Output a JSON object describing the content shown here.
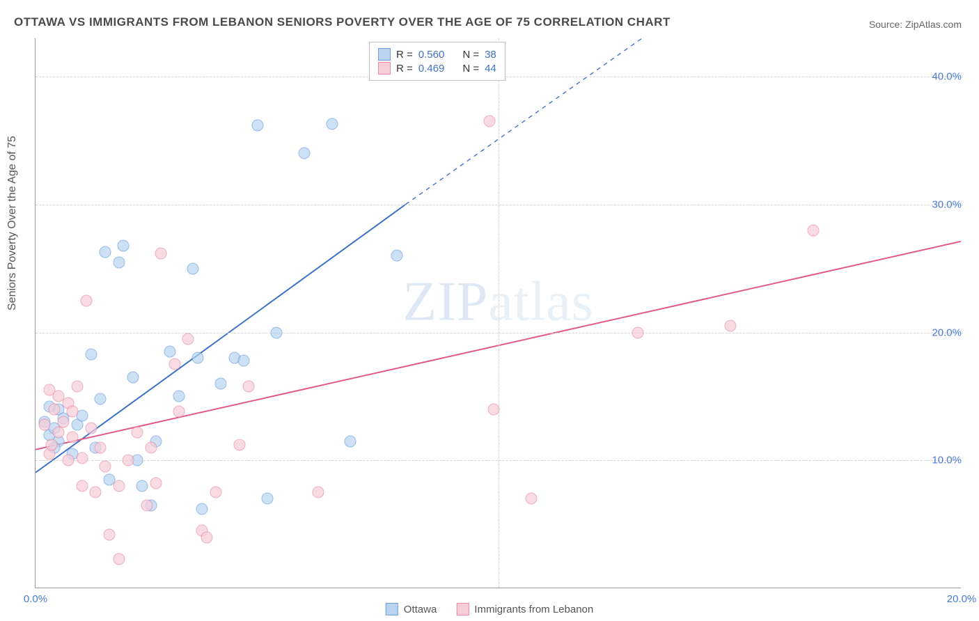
{
  "title": "OTTAWA VS IMMIGRANTS FROM LEBANON SENIORS POVERTY OVER THE AGE OF 75 CORRELATION CHART",
  "source": "Source: ZipAtlas.com",
  "watermark_bold": "ZIP",
  "watermark_thin": "atlas",
  "chart": {
    "type": "scatter",
    "yaxis_title": "Seniors Poverty Over the Age of 75",
    "xlim": [
      0.0,
      20.0
    ],
    "ylim": [
      0.0,
      43.0
    ],
    "xtick_positions": [
      0.0,
      20.0
    ],
    "xtick_labels": [
      "0.0%",
      "20.0%"
    ],
    "ytick_positions": [
      10.0,
      20.0,
      30.0,
      40.0
    ],
    "ytick_labels": [
      "10.0%",
      "20.0%",
      "30.0%",
      "40.0%"
    ],
    "grid_color": "#d5d5d5",
    "axis_color": "#999999",
    "background_color": "#ffffff",
    "tick_label_color": "#4a7bd4",
    "marker_radius": 8.5,
    "marker_opacity": 0.7,
    "series": [
      {
        "name": "Ottawa",
        "fill_color": "#b9d3f0",
        "stroke_color": "#6a9fe0",
        "R": "0.560",
        "N": "38",
        "trendline": {
          "x1": 0.0,
          "y1": 9.0,
          "x2": 8.0,
          "y2": 30.0,
          "dashed_to_x": 13.5,
          "dashed_to_y": 44.0,
          "color": "#3e72c8",
          "width": 2.0
        },
        "points": [
          [
            0.2,
            13.0
          ],
          [
            0.3,
            12.0
          ],
          [
            0.4,
            12.5
          ],
          [
            0.5,
            11.5
          ],
          [
            0.5,
            14.0
          ],
          [
            0.8,
            10.5
          ],
          [
            1.2,
            18.3
          ],
          [
            1.3,
            11.0
          ],
          [
            1.5,
            26.3
          ],
          [
            1.6,
            8.5
          ],
          [
            1.8,
            25.5
          ],
          [
            1.9,
            26.8
          ],
          [
            2.2,
            10.0
          ],
          [
            2.3,
            8.0
          ],
          [
            2.5,
            6.5
          ],
          [
            2.6,
            11.5
          ],
          [
            2.9,
            18.5
          ],
          [
            3.1,
            15.0
          ],
          [
            3.4,
            25.0
          ],
          [
            3.5,
            18.0
          ],
          [
            3.6,
            6.2
          ],
          [
            4.0,
            16.0
          ],
          [
            4.3,
            18.0
          ],
          [
            4.8,
            36.2
          ],
          [
            5.0,
            7.0
          ],
          [
            5.2,
            20.0
          ],
          [
            5.8,
            34.0
          ],
          [
            6.4,
            36.3
          ],
          [
            6.8,
            11.5
          ],
          [
            7.8,
            26.0
          ],
          [
            0.3,
            14.2
          ],
          [
            0.6,
            13.3
          ],
          [
            0.9,
            12.8
          ],
          [
            1.0,
            13.5
          ],
          [
            1.4,
            14.8
          ],
          [
            2.1,
            16.5
          ],
          [
            4.5,
            17.8
          ],
          [
            0.4,
            11.0
          ]
        ]
      },
      {
        "name": "Immigrants from Lebanon",
        "fill_color": "#f7cdd8",
        "stroke_color": "#e88ba8",
        "R": "0.469",
        "N": "44",
        "trendline": {
          "x1": 0.0,
          "y1": 10.8,
          "x2": 20.0,
          "y2": 27.1,
          "color": "#e05a88",
          "width": 2.0
        },
        "points": [
          [
            0.2,
            12.8
          ],
          [
            0.3,
            15.5
          ],
          [
            0.5,
            15.0
          ],
          [
            0.6,
            13.0
          ],
          [
            0.7,
            14.5
          ],
          [
            0.8,
            11.8
          ],
          [
            0.9,
            15.8
          ],
          [
            1.0,
            10.2
          ],
          [
            1.0,
            8.0
          ],
          [
            1.1,
            22.5
          ],
          [
            1.3,
            7.5
          ],
          [
            1.5,
            9.5
          ],
          [
            1.6,
            4.2
          ],
          [
            1.8,
            8.0
          ],
          [
            1.8,
            2.3
          ],
          [
            2.2,
            12.2
          ],
          [
            2.4,
            6.5
          ],
          [
            2.5,
            11.0
          ],
          [
            2.6,
            8.2
          ],
          [
            2.7,
            26.2
          ],
          [
            3.0,
            17.5
          ],
          [
            3.1,
            13.8
          ],
          [
            3.3,
            19.5
          ],
          [
            3.6,
            4.5
          ],
          [
            3.7,
            4.0
          ],
          [
            3.9,
            7.5
          ],
          [
            4.4,
            11.2
          ],
          [
            4.6,
            15.8
          ],
          [
            6.1,
            7.5
          ],
          [
            9.8,
            36.5
          ],
          [
            9.9,
            14.0
          ],
          [
            10.7,
            7.0
          ],
          [
            13.0,
            20.0
          ],
          [
            15.0,
            20.5
          ],
          [
            16.8,
            28.0
          ],
          [
            0.3,
            10.5
          ],
          [
            0.4,
            14.0
          ],
          [
            0.5,
            12.2
          ],
          [
            0.7,
            10.0
          ],
          [
            0.8,
            13.8
          ],
          [
            1.2,
            12.5
          ],
          [
            1.4,
            11.0
          ],
          [
            2.0,
            10.0
          ],
          [
            0.35,
            11.2
          ]
        ]
      }
    ]
  },
  "stats_legend": {
    "R_label": "R =",
    "N_label": "N ="
  },
  "bottom_legend": {
    "items": [
      "Ottawa",
      "Immigrants from Lebanon"
    ]
  }
}
